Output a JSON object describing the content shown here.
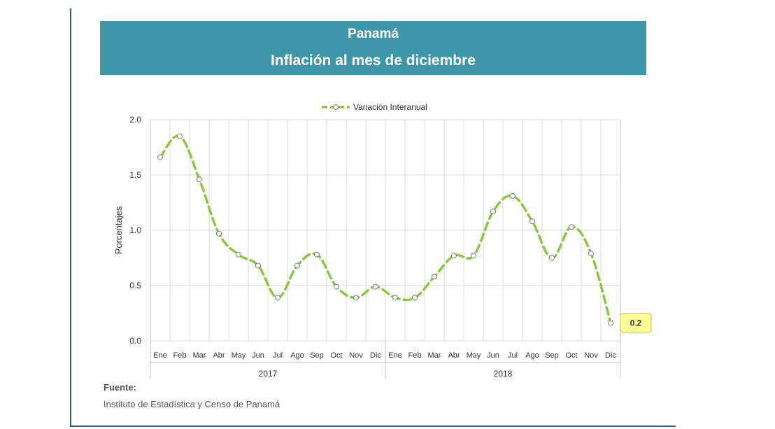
{
  "title": {
    "line1": "Panamá",
    "line2": "Inflación al mes de diciembre"
  },
  "source": {
    "label": "Fuente:",
    "text": "Instituto de Estadística y Censo de Panamá"
  },
  "colors": {
    "title_band": "#3d97a8",
    "series": "#8dc63f",
    "grid": "#d9d9d9",
    "callout_fill": "#ffff99"
  },
  "chart_data": {
    "type": "line",
    "ylabel": "Porcentajes",
    "xlabel": "",
    "ylim": [
      0,
      2.0
    ],
    "yticks": [
      "2.0",
      "1.5",
      "1.0",
      "0.5",
      "0.0"
    ],
    "categories": [
      "Ene",
      "Feb",
      "Mar",
      "Abr",
      "May",
      "Jun",
      "Jul",
      "Ago",
      "Sep",
      "Oct",
      "Nov",
      "Dic",
      "Ene",
      "Feb",
      "Mar",
      "Abr",
      "May",
      "Jun",
      "Jul",
      "Ago",
      "Sep",
      "Oct",
      "Nov",
      "Dic"
    ],
    "groups": [
      {
        "label": "2017",
        "count": 12
      },
      {
        "label": "2018",
        "count": 12
      }
    ],
    "series": [
      {
        "name": "Variación Interanual",
        "values": [
          1.66,
          1.85,
          1.46,
          0.97,
          0.78,
          0.68,
          0.39,
          0.68,
          0.78,
          0.49,
          0.39,
          0.49,
          0.39,
          0.39,
          0.58,
          0.77,
          0.77,
          1.17,
          1.31,
          1.08,
          0.75,
          1.03,
          0.79,
          0.16
        ]
      }
    ],
    "legend": "top-center",
    "grid": true,
    "smooth": true,
    "data_label": {
      "index": 23,
      "text": "0.2"
    }
  }
}
